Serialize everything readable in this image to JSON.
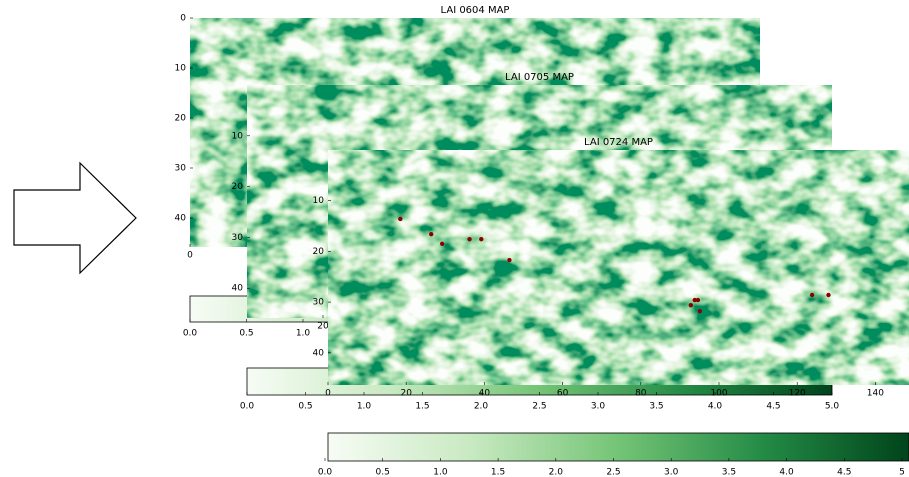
{
  "panels": [
    {
      "title": "LAI 0604  MAP",
      "yticks": [
        0,
        10,
        20,
        30,
        40
      ],
      "xticks": [
        0
      ],
      "colorbar_ticks": [
        {
          "value": 0,
          "label": "0.0"
        },
        {
          "value": 0.5,
          "label": "0.5"
        },
        {
          "value": 1,
          "label": "1.0"
        }
      ]
    },
    {
      "title": "LAI 0705  MAP",
      "yticks": [
        10,
        20,
        30,
        40
      ],
      "xticks": [
        20
      ],
      "colorbar_ticks": [
        {
          "value": 0,
          "label": "0.0"
        },
        {
          "value": 0.5,
          "label": "0.5"
        },
        {
          "value": 1,
          "label": "1.0"
        },
        {
          "value": 1.5,
          "label": "1.5"
        },
        {
          "value": 2,
          "label": "2.0"
        },
        {
          "value": 2.5,
          "label": "2.5"
        },
        {
          "value": 3,
          "label": "3.0"
        },
        {
          "value": 3.5,
          "label": "3.5"
        },
        {
          "value": 4,
          "label": "4.0"
        },
        {
          "value": 4.5,
          "label": "4.5"
        },
        {
          "value": 5,
          "label": "5.0"
        }
      ]
    },
    {
      "title": "LAI 0724  MAP",
      "yticks": [
        10,
        20,
        30,
        40
      ],
      "xticks": [
        0,
        20,
        40,
        60,
        80,
        100,
        120,
        140
      ],
      "colorbar_ticks": [
        {
          "value": 0,
          "label": "0.0"
        },
        {
          "value": 0.5,
          "label": "0.5"
        },
        {
          "value": 1,
          "label": "1.0"
        },
        {
          "value": 1.5,
          "label": "1.5"
        },
        {
          "value": 2,
          "label": "2.0"
        },
        {
          "value": 2.5,
          "label": "2.5"
        },
        {
          "value": 3,
          "label": "3.0"
        },
        {
          "value": 3.5,
          "label": "3.5"
        },
        {
          "value": 4,
          "label": "4.0"
        },
        {
          "value": 4.5,
          "label": "4.5"
        },
        {
          "value": 5,
          "label": "5"
        }
      ],
      "points": {
        "color": "#8b0000",
        "x": [
          18.5,
          26.4,
          29.2,
          36.2,
          39.2,
          46.4,
          92.8,
          93.8,
          94.6,
          95.1,
          123.8,
          128.0
        ],
        "y": [
          13.6,
          16.6,
          18.5,
          17.6,
          17.6,
          21.7,
          30.6,
          29.6,
          29.6,
          31.8,
          28.6,
          28.6
        ]
      }
    }
  ]
}
